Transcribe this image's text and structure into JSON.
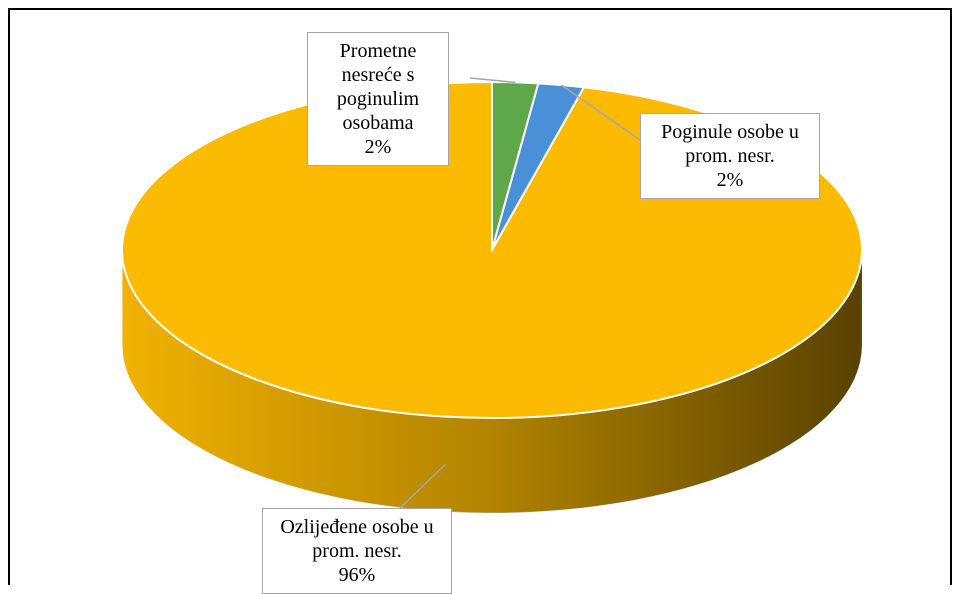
{
  "chart_data": {
    "type": "pie",
    "categories": [
      "Prometne nesreće s poginulim osobama",
      "Poginule osobe u prom. nesr.",
      "Ozlijeđene osobe u prom. nesr."
    ],
    "values": [
      2,
      2,
      96
    ],
    "value_labels": [
      "2%",
      "2%",
      "96%"
    ],
    "colors": [
      "#5fa84a",
      "#4a90d9",
      "#fdbb00"
    ]
  }
}
